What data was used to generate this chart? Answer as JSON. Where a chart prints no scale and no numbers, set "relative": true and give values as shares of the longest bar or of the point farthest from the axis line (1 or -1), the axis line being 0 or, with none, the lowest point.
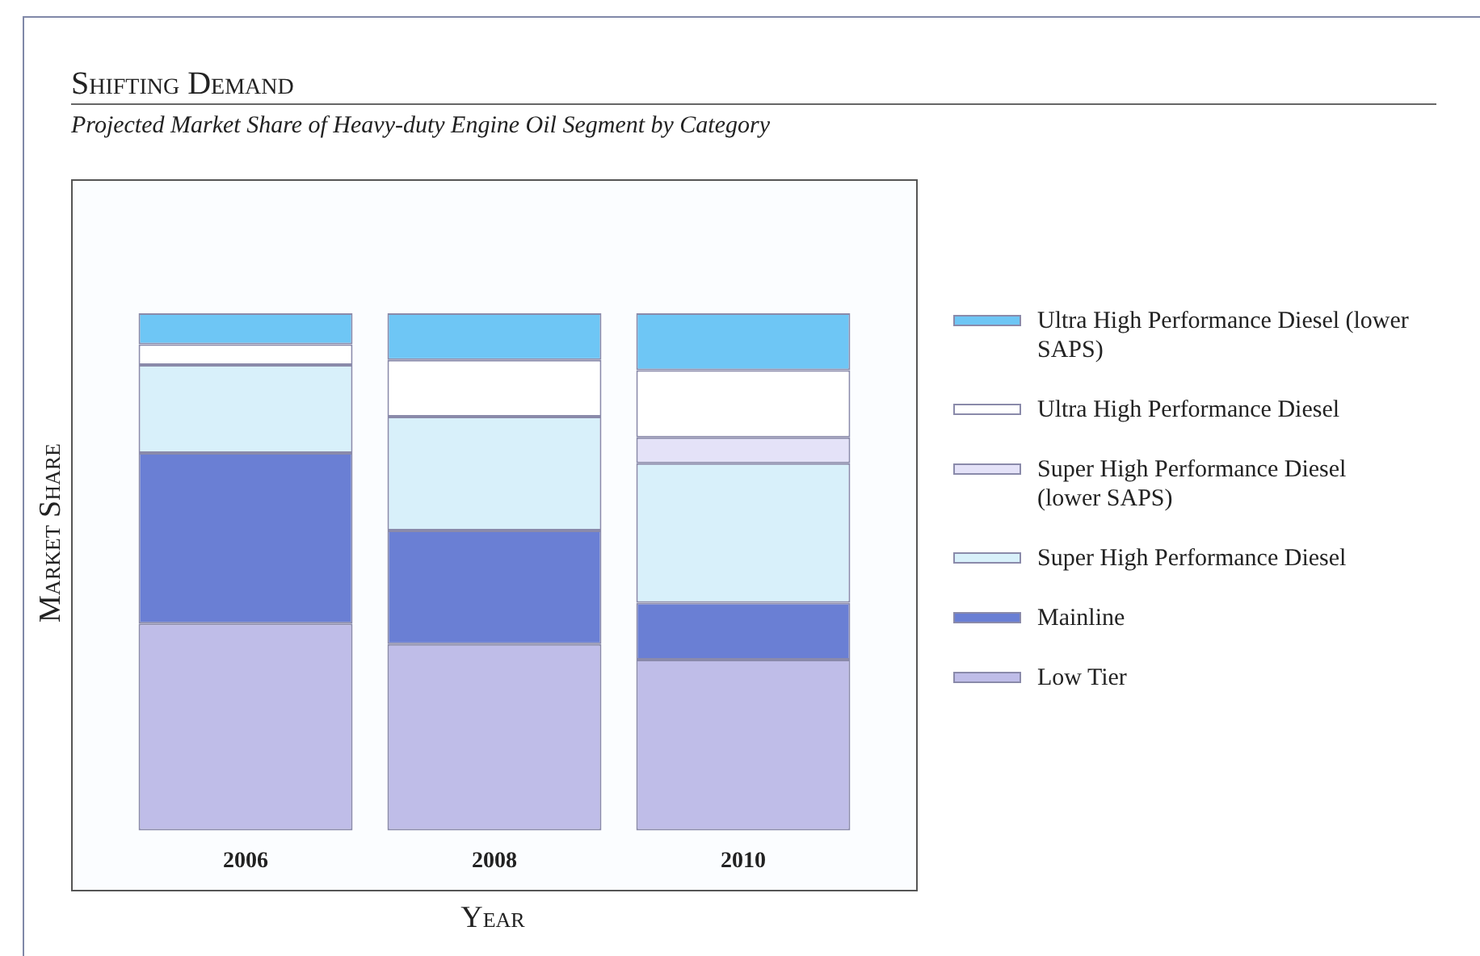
{
  "chart_data": {
    "type": "bar",
    "title": "Shifting Demand",
    "subtitle": "Projected Market Share of Heavy-duty Engine Oil Segment by Category",
    "xlabel": "Year",
    "ylabel": "Market Share",
    "categories": [
      "2006",
      "2008",
      "2010"
    ],
    "stacked": true,
    "relative": true,
    "legend": "right",
    "series": [
      {
        "name": "Low Tier",
        "color": "#bfbde8",
        "values": [
          0.4,
          0.36,
          0.33
        ]
      },
      {
        "name": "Mainline",
        "color": "#6a7fd4",
        "values": [
          0.33,
          0.22,
          0.11
        ]
      },
      {
        "name": "Super High Performance Diesel",
        "color": "#d8f0fa",
        "values": [
          0.17,
          0.22,
          0.27
        ]
      },
      {
        "name": "Super High Performance Diesel (lower SAPS)",
        "color": "#e4e2f8",
        "values": [
          0,
          0,
          0.05
        ]
      },
      {
        "name": "Ultra High Performance Diesel",
        "color": "#ffffff",
        "values": [
          0.04,
          0.11,
          0.13
        ]
      },
      {
        "name": "Ultra High Performance Diesel (lower SAPS)",
        "color": "#6ec6f5",
        "values": [
          0.06,
          0.09,
          0.11
        ]
      }
    ]
  }
}
